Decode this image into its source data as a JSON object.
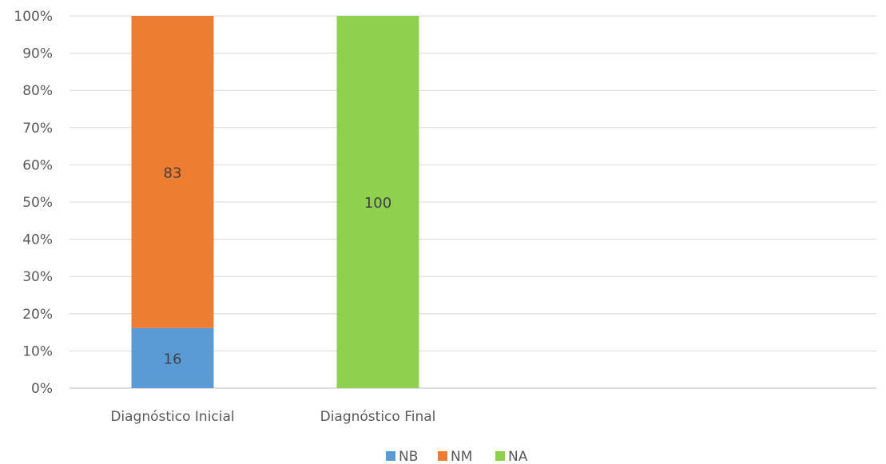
{
  "chart_data": {
    "type": "bar",
    "stacked": "percent",
    "categories": [
      "Diagnóstico Inicial",
      "Diagnóstico Final"
    ],
    "series": [
      {
        "name": "NB",
        "color": "#5B9BD5",
        "values": [
          16,
          0
        ]
      },
      {
        "name": "NM",
        "color": "#ED7D31",
        "values": [
          83,
          0
        ]
      },
      {
        "name": "NA",
        "color": "#8FD14F",
        "values": [
          0,
          100
        ]
      }
    ],
    "data_labels": [
      [
        "16",
        ""
      ],
      [
        "83",
        ""
      ],
      [
        "",
        "100"
      ]
    ],
    "yticks": [
      "0%",
      "10%",
      "20%",
      "30%",
      "40%",
      "50%",
      "60%",
      "70%",
      "80%",
      "90%",
      "100%"
    ],
    "ylim": [
      0,
      100
    ],
    "grid": true,
    "legend_position": "bottom"
  }
}
